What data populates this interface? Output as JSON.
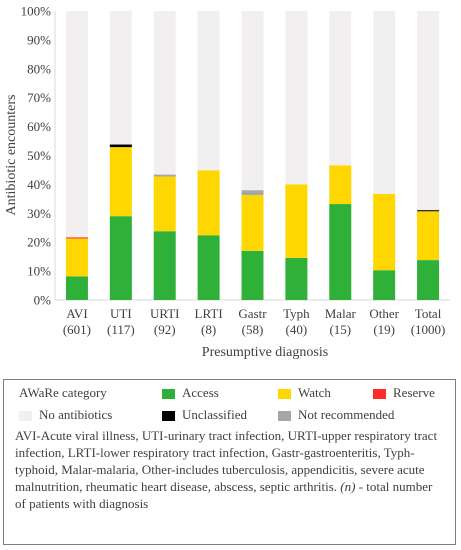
{
  "chart_data": {
    "type": "bar",
    "stacked": true,
    "ylabel": "Antibiotic encounters",
    "xlabel": "Presumptive diagnosis",
    "ylim": [
      0,
      100
    ],
    "yticks": [
      "0%",
      "10%",
      "20%",
      "30%",
      "40%",
      "50%",
      "60%",
      "70%",
      "80%",
      "90%",
      "100%"
    ],
    "grid": false,
    "categories": [
      "AVI (601)",
      "UTI (117)",
      "URTI (92)",
      "LRTI (8)",
      "Gastr (58)",
      "Typh (40)",
      "Malar (15)",
      "Other (19)",
      "Total (1000)"
    ],
    "category_lines": [
      [
        "AVI",
        "(601)"
      ],
      [
        "UTI",
        "(117)"
      ],
      [
        "URTI",
        "(92)"
      ],
      [
        "LRTI",
        "(8)"
      ],
      [
        "Gastr",
        "(58)"
      ],
      [
        "Typh",
        "(40)"
      ],
      [
        "Malar",
        "(15)"
      ],
      [
        "Other",
        "(19)"
      ],
      [
        "Total",
        "(1000)"
      ]
    ],
    "series": [
      {
        "name": "Access",
        "color": "#2eb039",
        "values": [
          8.2,
          29.0,
          23.8,
          22.4,
          17.0,
          14.6,
          33.2,
          10.3,
          13.8
        ]
      },
      {
        "name": "Watch",
        "color": "#ffd700",
        "values": [
          13.1,
          23.9,
          18.9,
          22.5,
          19.3,
          25.4,
          13.4,
          26.4,
          16.9
        ]
      },
      {
        "name": "Reserve",
        "color": "#ff2a2a",
        "values": [
          0.4,
          0,
          0,
          0,
          0,
          0,
          0,
          0,
          0
        ]
      },
      {
        "name": "Unclassified",
        "color": "#000000",
        "values": [
          0,
          0.9,
          0,
          0,
          0,
          0,
          0,
          0,
          0.4
        ]
      },
      {
        "name": "Not recommended",
        "color": "#a6a6a6",
        "values": [
          0,
          0,
          0.7,
          0,
          1.7,
          0,
          0,
          0,
          0
        ]
      },
      {
        "name": "No antibiotics",
        "color": "#f2eff1",
        "values": [
          78.3,
          46.2,
          56.6,
          55.1,
          62.0,
          60.0,
          53.4,
          63.3,
          68.9
        ]
      }
    ]
  },
  "legend": {
    "title": "AWaRe category",
    "items": [
      "Access",
      "Watch",
      "Reserve",
      "No antibiotics",
      "Unclassified",
      "Not recommended"
    ]
  },
  "note": {
    "text": "AVI-Acute viral illness, UTI-urinary tract infection, URTI-upper respiratory tract infection, LRTI-lower respiratory tract infection, Gastr-gastroenteritis, Typh-typhoid, Malar-malaria, Other-includes tuberculosis, appendicitis, severe acute malnutrition, rheumatic heart disease, abscess, septic arthritis.",
    "n_symbol": "(n)",
    "n_text": " - total number of patients with diagnosis"
  }
}
